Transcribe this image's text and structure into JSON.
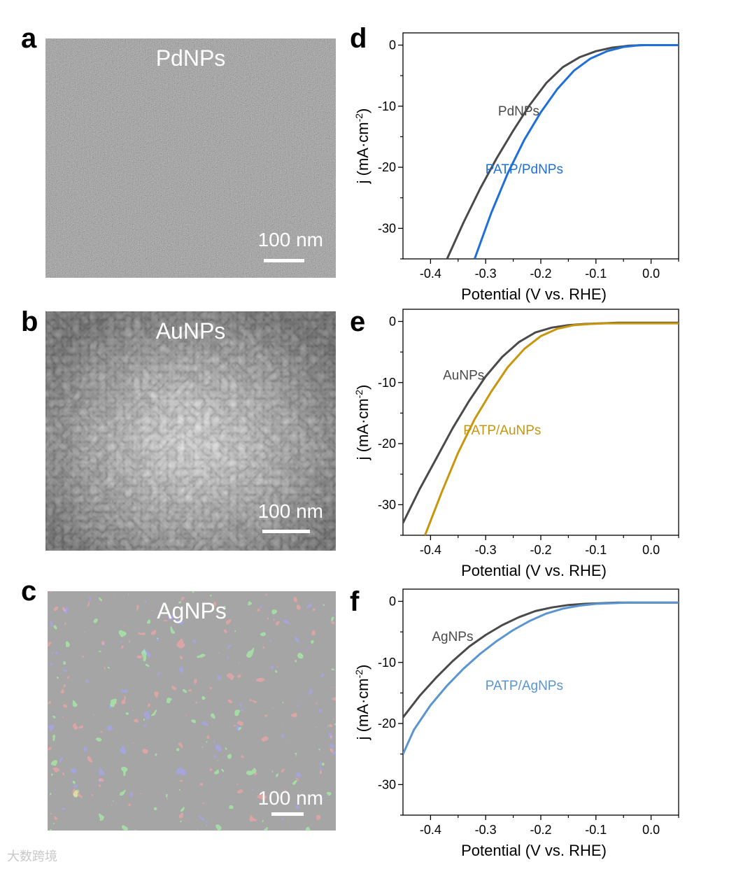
{
  "panels": {
    "a": {
      "letter": "a",
      "label": "PdNPs",
      "scale": "100 nm"
    },
    "b": {
      "letter": "b",
      "label": "AuNPs",
      "scale": "100 nm"
    },
    "c": {
      "letter": "c",
      "label": "AgNPs",
      "scale": "100 nm"
    },
    "d": {
      "letter": "d"
    },
    "e": {
      "letter": "e"
    },
    "f": {
      "letter": "f"
    }
  },
  "colors": {
    "pd": "#1f6fd8",
    "au": "#c8960c",
    "ag": "#5a95d0",
    "bare": "#3c3c3c"
  },
  "chart_data": [
    {
      "type": "line",
      "id": "d",
      "xlabel": "Potential (V vs. RHE)",
      "ylabel": "j (mA·cm-2)",
      "xlim": [
        -0.45,
        0.05
      ],
      "ylim": [
        -35,
        2
      ],
      "xticks": [
        -0.4,
        -0.3,
        -0.2,
        -0.1,
        0.0
      ],
      "xtick_labels": [
        "-0.4",
        "-0.3",
        "-0.2",
        "-0.1",
        "0.0"
      ],
      "yticks": [
        0,
        -10,
        -20,
        -30
      ],
      "ytick_labels": [
        "0",
        "-10",
        "-20",
        "-30"
      ],
      "series": [
        {
          "name": "PdNPs",
          "color": "#4a4a4a",
          "x": [
            -0.37,
            -0.34,
            -0.31,
            -0.28,
            -0.25,
            -0.22,
            -0.19,
            -0.16,
            -0.13,
            -0.1,
            -0.07,
            -0.04,
            -0.01,
            0.02,
            0.05
          ],
          "y": [
            -35,
            -29,
            -23.5,
            -18.5,
            -14,
            -9.8,
            -6.2,
            -3.6,
            -2.0,
            -1.0,
            -0.4,
            -0.1,
            0.0,
            0.0,
            0.0
          ],
          "label_pos": [
            -0.24,
            -11.5
          ]
        },
        {
          "name": "PATP/PdNPs",
          "color": "#1f6fd8",
          "x": [
            -0.32,
            -0.29,
            -0.26,
            -0.23,
            -0.2,
            -0.17,
            -0.14,
            -0.11,
            -0.08,
            -0.05,
            -0.02,
            0.01,
            0.05
          ],
          "y": [
            -35,
            -27.5,
            -21,
            -15.5,
            -11,
            -7.2,
            -4.2,
            -2.2,
            -1.0,
            -0.3,
            0.0,
            0.0,
            0.0
          ],
          "label_pos": [
            -0.23,
            -21
          ]
        }
      ]
    },
    {
      "type": "line",
      "id": "e",
      "xlabel": "Potential (V vs. RHE)",
      "ylabel": "j (mA·cm-2)",
      "xlim": [
        -0.45,
        0.05
      ],
      "ylim": [
        -35,
        2
      ],
      "xticks": [
        -0.4,
        -0.3,
        -0.2,
        -0.1,
        0.0
      ],
      "xtick_labels": [
        "-0.4",
        "-0.3",
        "-0.2",
        "-0.1",
        "0.0"
      ],
      "yticks": [
        0,
        -10,
        -20,
        -30
      ],
      "ytick_labels": [
        "0",
        "-10",
        "-20",
        "-30"
      ],
      "series": [
        {
          "name": "AuNPs",
          "color": "#4a4a4a",
          "x": [
            -0.45,
            -0.42,
            -0.39,
            -0.36,
            -0.33,
            -0.3,
            -0.27,
            -0.24,
            -0.21,
            -0.18,
            -0.15,
            -0.12,
            -0.09,
            -0.06,
            -0.03,
            0.0,
            0.05
          ],
          "y": [
            -33,
            -27.5,
            -22.5,
            -17.5,
            -13,
            -9,
            -5.8,
            -3.4,
            -1.8,
            -1.0,
            -0.6,
            -0.4,
            -0.3,
            -0.2,
            -0.2,
            -0.2,
            -0.2
          ],
          "label_pos": [
            -0.34,
            -9.5
          ]
        },
        {
          "name": "PATP/AuNPs",
          "color": "#c8960c",
          "x": [
            -0.41,
            -0.38,
            -0.35,
            -0.32,
            -0.29,
            -0.26,
            -0.23,
            -0.2,
            -0.17,
            -0.14,
            -0.11,
            -0.08,
            -0.05,
            -0.02,
            0.05
          ],
          "y": [
            -35,
            -28,
            -21.5,
            -16,
            -11.5,
            -7.5,
            -4.5,
            -2.4,
            -1.2,
            -0.6,
            -0.4,
            -0.3,
            -0.3,
            -0.3,
            -0.3
          ],
          "label_pos": [
            -0.27,
            -18.5
          ]
        }
      ]
    },
    {
      "type": "line",
      "id": "f",
      "xlabel": "Potential (V vs. RHE)",
      "ylabel": "j (mA·cm-2)",
      "xlim": [
        -0.45,
        0.05
      ],
      "ylim": [
        -35,
        2
      ],
      "xticks": [
        -0.4,
        -0.3,
        -0.2,
        -0.1,
        0.0
      ],
      "xtick_labels": [
        "-0.4",
        "-0.3",
        "-0.2",
        "-0.1",
        "0.0"
      ],
      "yticks": [
        0,
        -10,
        -20,
        -30
      ],
      "ytick_labels": [
        "0",
        "-10",
        "-20",
        "-30"
      ],
      "series": [
        {
          "name": "AgNPs",
          "color": "#4a4a4a",
          "x": [
            -0.45,
            -0.42,
            -0.39,
            -0.36,
            -0.33,
            -0.3,
            -0.27,
            -0.24,
            -0.21,
            -0.18,
            -0.15,
            -0.12,
            -0.09,
            -0.06,
            -0.03,
            0.0,
            0.05
          ],
          "y": [
            -19,
            -15.5,
            -12.5,
            -9.8,
            -7.4,
            -5.5,
            -3.9,
            -2.6,
            -1.6,
            -1.0,
            -0.6,
            -0.4,
            -0.3,
            -0.2,
            -0.2,
            -0.2,
            -0.2
          ],
          "label_pos": [
            -0.36,
            -6.5
          ]
        },
        {
          "name": "PATP/AgNPs",
          "color": "#5a95d0",
          "x": [
            -0.45,
            -0.43,
            -0.4,
            -0.37,
            -0.34,
            -0.31,
            -0.28,
            -0.25,
            -0.22,
            -0.19,
            -0.16,
            -0.13,
            -0.1,
            -0.07,
            -0.04,
            0.0,
            0.05
          ],
          "y": [
            -25,
            -21,
            -17,
            -13.8,
            -11,
            -8.6,
            -6.5,
            -4.7,
            -3.2,
            -2.0,
            -1.2,
            -0.7,
            -0.4,
            -0.3,
            -0.2,
            -0.2,
            -0.2
          ],
          "label_pos": [
            -0.23,
            -14.5
          ]
        }
      ]
    }
  ],
  "watermark": "大数跨境"
}
